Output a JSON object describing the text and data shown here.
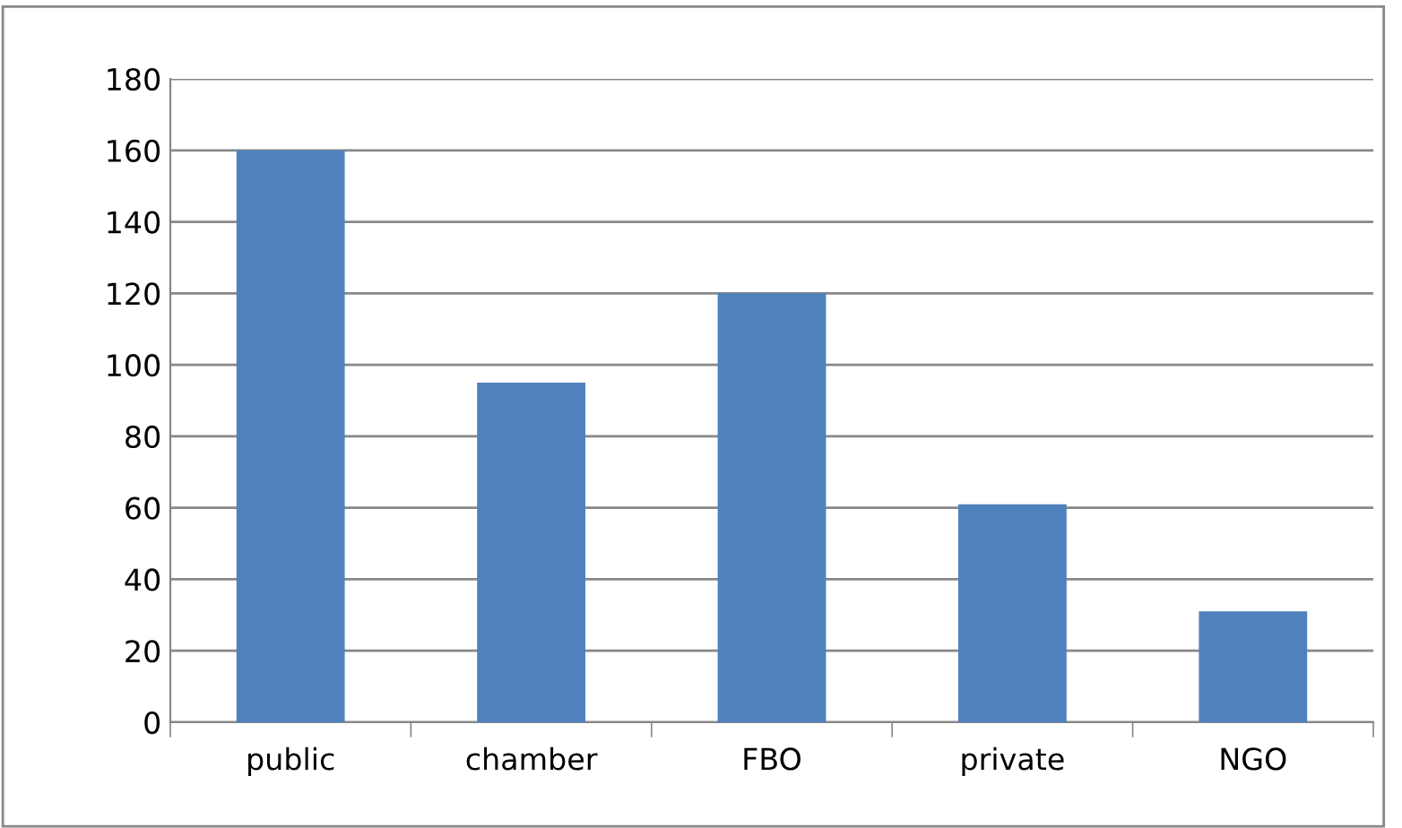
{
  "chart_data": {
    "type": "bar",
    "categories": [
      "public",
      "chamber",
      "FBO",
      "private",
      "NGO"
    ],
    "values": [
      160,
      95,
      120,
      61,
      31
    ],
    "color": "#4f81bd",
    "ylim": [
      0,
      180
    ],
    "yticks": [
      0,
      20,
      40,
      60,
      80,
      100,
      120,
      140,
      160,
      180
    ],
    "grid": "y"
  }
}
